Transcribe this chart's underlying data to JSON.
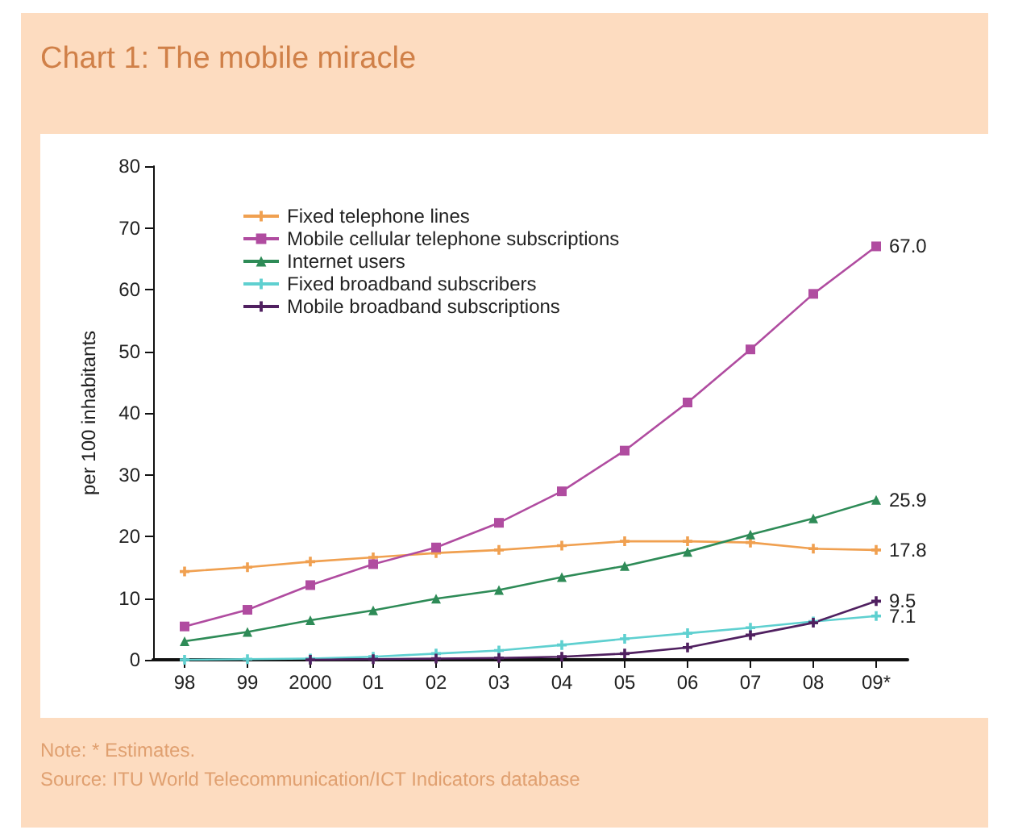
{
  "chart_data": {
    "type": "line",
    "title": "Chart 1: The mobile miracle",
    "ylabel": "per 100 inhabitants",
    "categories": [
      "98",
      "99",
      "2000",
      "01",
      "02",
      "03",
      "04",
      "05",
      "06",
      "07",
      "08",
      "09*"
    ],
    "series": [
      {
        "name": "Fixed telephone lines",
        "color": "#f0a050",
        "marker": "cross",
        "values": [
          14.3,
          15.0,
          15.9,
          16.6,
          17.3,
          17.8,
          18.5,
          19.2,
          19.2,
          19.0,
          18.0,
          17.8
        ],
        "value_labels": [
          null,
          null,
          null,
          null,
          null,
          null,
          null,
          null,
          null,
          null,
          null,
          "17.8"
        ]
      },
      {
        "name": "Mobile cellular telephone subscriptions",
        "color": "#b04ca0",
        "marker": "square",
        "values": [
          5.4,
          8.1,
          12.1,
          15.5,
          18.2,
          22.2,
          27.3,
          33.9,
          41.7,
          50.3,
          59.3,
          67.0
        ],
        "value_labels": [
          null,
          null,
          null,
          null,
          null,
          null,
          null,
          null,
          null,
          null,
          null,
          "67.0"
        ]
      },
      {
        "name": "Internet users",
        "color": "#2e8b57",
        "marker": "triangle",
        "values": [
          3.0,
          4.5,
          6.4,
          8.0,
          9.9,
          11.3,
          13.4,
          15.2,
          17.5,
          20.3,
          22.9,
          25.9
        ],
        "value_labels": [
          null,
          null,
          null,
          null,
          null,
          null,
          null,
          null,
          null,
          null,
          null,
          "25.9"
        ]
      },
      {
        "name": "Fixed broadband subscribers",
        "color": "#5fd0d0",
        "marker": "cross",
        "values": [
          0.0,
          0.1,
          0.2,
          0.5,
          1.0,
          1.5,
          2.4,
          3.4,
          4.3,
          5.2,
          6.2,
          7.1
        ],
        "value_labels": [
          null,
          null,
          null,
          null,
          null,
          null,
          null,
          null,
          null,
          null,
          null,
          "7.1"
        ]
      },
      {
        "name": "Mobile broadband subscriptions",
        "color": "#502060",
        "marker": "cross",
        "values": [
          null,
          null,
          0.0,
          0.1,
          0.2,
          0.3,
          0.5,
          1.0,
          2.0,
          4.0,
          6.0,
          9.5
        ],
        "value_labels": [
          null,
          null,
          null,
          null,
          null,
          null,
          null,
          null,
          null,
          null,
          null,
          "9.5"
        ]
      }
    ],
    "ylim": [
      0,
      80
    ],
    "yticks": [
      0,
      10,
      20,
      30,
      40,
      50,
      60,
      70,
      80
    ],
    "grid": false,
    "legend": "top left",
    "annotations": [
      "Note:  * Estimates.",
      "Source:  ITU World Telecommunication/ICT Indicators database"
    ]
  }
}
